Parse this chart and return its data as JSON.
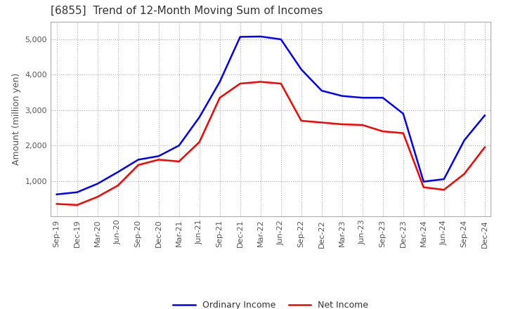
{
  "title": "[6855]  Trend of 12-Month Moving Sum of Incomes",
  "ylabel": "Amount (million yen)",
  "background_color": "#ffffff",
  "grid_color": "#aaaaaa",
  "x_labels": [
    "Sep-19",
    "Dec-19",
    "Mar-20",
    "Jun-20",
    "Sep-20",
    "Dec-20",
    "Mar-21",
    "Jun-21",
    "Sep-21",
    "Dec-21",
    "Mar-22",
    "Jun-22",
    "Sep-22",
    "Dec-22",
    "Mar-23",
    "Jun-23",
    "Sep-23",
    "Dec-23",
    "Mar-24",
    "Jun-24",
    "Sep-24",
    "Dec-24"
  ],
  "ordinary_income": [
    620,
    680,
    920,
    1250,
    1600,
    1700,
    2000,
    2800,
    3800,
    5070,
    5080,
    5000,
    4150,
    3550,
    3400,
    3350,
    3350,
    2900,
    980,
    1050,
    2150,
    2850
  ],
  "net_income": [
    350,
    320,
    550,
    870,
    1450,
    1600,
    1550,
    2100,
    3350,
    3750,
    3800,
    3750,
    2700,
    2650,
    2600,
    2580,
    2400,
    2350,
    820,
    750,
    1200,
    1950
  ],
  "ordinary_color": "#0000ff",
  "net_color": "#ff0000",
  "ylim": [
    0,
    5500
  ],
  "yticks": [
    1000,
    2000,
    3000,
    4000,
    5000
  ],
  "legend_labels": [
    "Ordinary Income",
    "Net Income"
  ],
  "title_fontsize": 11,
  "axis_fontsize": 9,
  "tick_fontsize": 8
}
